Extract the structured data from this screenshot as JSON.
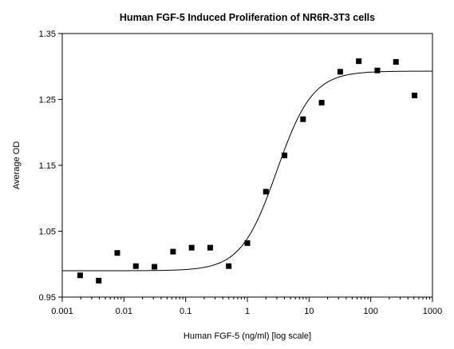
{
  "chart_data": {
    "type": "scatter",
    "title": "Human FGF-5 Induced Proliferation of NR6R-3T3 cells",
    "xlabel": "Human FGF-5 (ng/ml) [log scale]",
    "ylabel": "Average OD",
    "x_scale": "log",
    "xlim": [
      0.001,
      1000
    ],
    "ylim": [
      0.95,
      1.35
    ],
    "x_ticks": [
      "0.001",
      "0.01",
      "0.1",
      "1",
      "10",
      "100",
      "1000"
    ],
    "y_ticks": [
      "0.95",
      "1.05",
      "1.15",
      "1.25",
      "1.35"
    ],
    "grid": false,
    "legend": "none",
    "colors": {
      "marker": "#000000",
      "curve": "#000000"
    },
    "series": [
      {
        "x": [
          0.00195,
          0.0039,
          0.0078,
          0.0156,
          0.03125,
          0.0625,
          0.125,
          0.25,
          0.5,
          1,
          2,
          4,
          8,
          16,
          32,
          64,
          128,
          256,
          512
        ],
        "y": [
          0.983,
          0.975,
          1.017,
          0.997,
          0.996,
          1.019,
          1.025,
          1.025,
          0.997,
          1.032,
          1.11,
          1.165,
          1.22,
          1.245,
          1.292,
          1.308,
          1.294,
          1.307,
          1.256
        ]
      }
    ],
    "fit_curve": {
      "type": "four-parameter logistic",
      "bottom": 0.99,
      "top": 1.293,
      "ec50": 3.0,
      "hill": 1.5
    }
  }
}
